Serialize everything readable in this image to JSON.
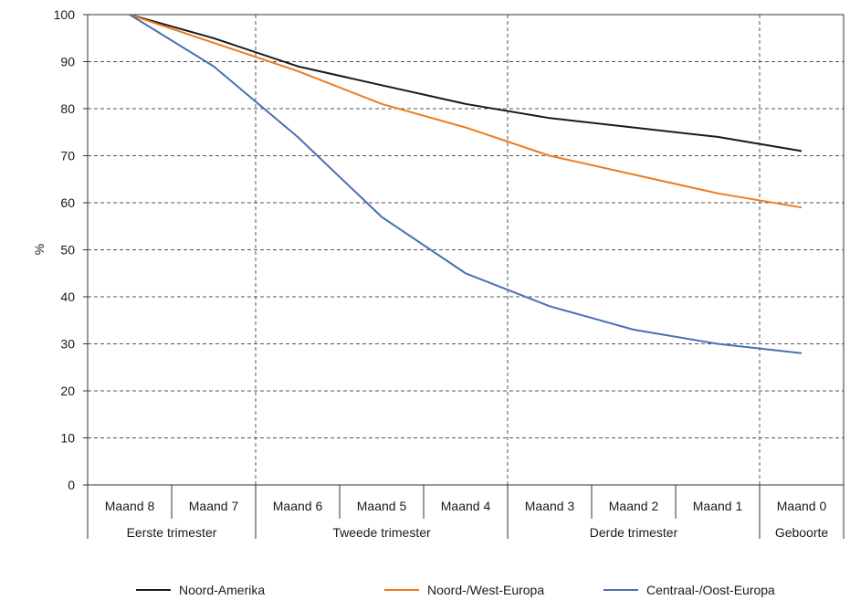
{
  "chart_data": {
    "type": "line",
    "ylabel": "%",
    "ylim": [
      0,
      100
    ],
    "yticks": [
      0,
      10,
      20,
      30,
      40,
      50,
      60,
      70,
      80,
      90,
      100
    ],
    "categories": [
      "Maand 8",
      "Maand 7",
      "Maand 6",
      "Maand 5",
      "Maand 4",
      "Maand 3",
      "Maand 2",
      "Maand 1",
      "Maand 0"
    ],
    "groups": [
      {
        "label": "Eerste trimester",
        "count": 2
      },
      {
        "label": "Tweede trimester",
        "count": 3
      },
      {
        "label": "Derde trimester",
        "count": 3
      },
      {
        "label": "Geboorte",
        "count": 1
      }
    ],
    "grid": true,
    "legend_position": "bottom",
    "series": [
      {
        "name": "Noord-Amerika",
        "color": "#1a1a1a",
        "values": [
          100,
          95,
          89,
          85,
          81,
          78,
          76,
          74,
          71
        ]
      },
      {
        "name": "Noord-/West-Europa",
        "color": "#ee7b1e",
        "values": [
          100,
          94,
          88,
          81,
          76,
          70,
          66,
          62,
          59
        ]
      },
      {
        "name": "Centraal-/Oost-Europa",
        "color": "#4a6fb5",
        "values": [
          100,
          89,
          74,
          57,
          45,
          38,
          33,
          30,
          28
        ]
      }
    ]
  }
}
